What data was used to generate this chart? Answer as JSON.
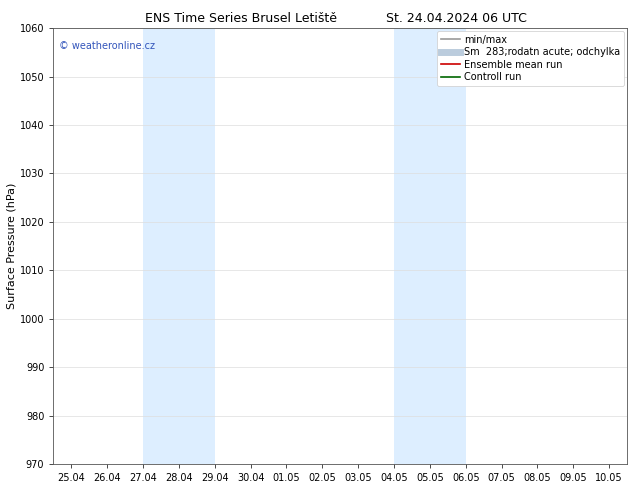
{
  "title_left": "ENS Time Series Brusel Letiště",
  "title_right": "St. 24.04.2024 06 UTC",
  "ylabel": "Surface Pressure (hPa)",
  "ylim": [
    970,
    1060
  ],
  "yticks": [
    970,
    980,
    990,
    1000,
    1010,
    1020,
    1030,
    1040,
    1050,
    1060
  ],
  "x_tick_labels": [
    "25.04",
    "26.04",
    "27.04",
    "28.04",
    "29.04",
    "30.04",
    "01.05",
    "02.05",
    "03.05",
    "04.05",
    "05.05",
    "06.05",
    "07.05",
    "08.05",
    "09.05",
    "10.05"
  ],
  "x_tick_positions": [
    0,
    1,
    2,
    3,
    4,
    5,
    6,
    7,
    8,
    9,
    10,
    11,
    12,
    13,
    14,
    15
  ],
  "shade_regions": [
    {
      "xmin": 2,
      "xmax": 4,
      "color": "#ddeeff"
    },
    {
      "xmin": 9,
      "xmax": 11,
      "color": "#ddeeff"
    }
  ],
  "watermark_text": "© weatheronline.cz",
  "watermark_color": "#3355bb",
  "legend_entries": [
    {
      "label": "min/max",
      "color": "#999999",
      "lw": 1.2,
      "ls": "-"
    },
    {
      "label": "Sm  283;rodatn acute; odchylka",
      "color": "#bbccdd",
      "lw": 5,
      "ls": "-"
    },
    {
      "label": "Ensemble mean run",
      "color": "#cc0000",
      "lw": 1.2,
      "ls": "-"
    },
    {
      "label": "Controll run",
      "color": "#006600",
      "lw": 1.2,
      "ls": "-"
    }
  ],
  "bg_color": "#ffffff",
  "plot_bg_color": "#ffffff",
  "grid_color": "#dddddd",
  "title_fontsize": 9,
  "axis_label_fontsize": 8,
  "tick_fontsize": 7,
  "legend_fontsize": 7,
  "watermark_fontsize": 7
}
